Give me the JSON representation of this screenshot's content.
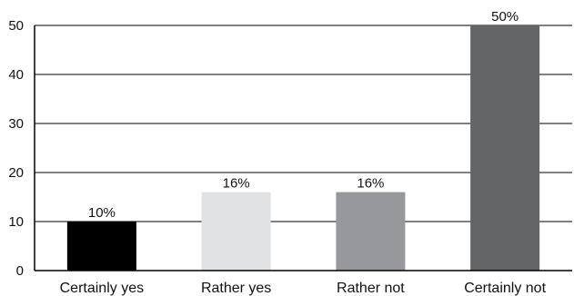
{
  "chart_data": {
    "type": "bar",
    "categories": [
      "Certainly yes",
      "Rather yes",
      "Rather not",
      "Certainly not"
    ],
    "values": [
      10,
      16,
      16,
      50
    ],
    "data_labels": [
      "10%",
      "16%",
      "16%",
      "50%"
    ],
    "bar_colors": [
      "#000000",
      "#e0e1e3",
      "#97989b",
      "#636466"
    ],
    "ylim": [
      0,
      50
    ],
    "y_ticks": [
      0,
      10,
      20,
      30,
      40,
      50
    ],
    "grid": true,
    "title": "",
    "xlabel": "",
    "ylabel": ""
  }
}
